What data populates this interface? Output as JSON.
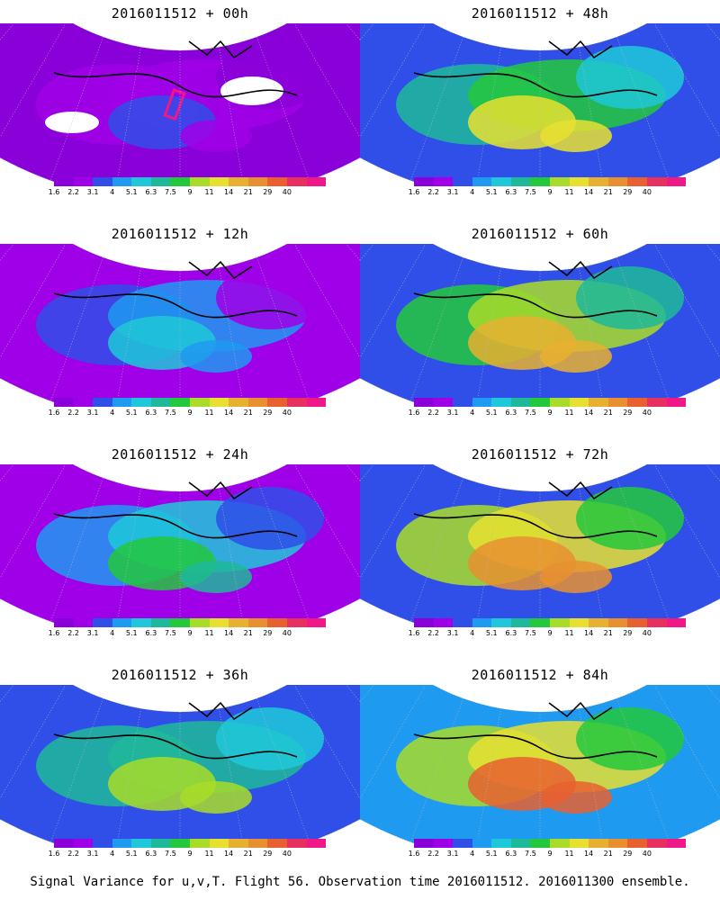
{
  "footer": "Signal Variance for u,v,T. Flight 56. Observation time 2016011512. 2016011300 ensemble.",
  "colorbar": {
    "colors": [
      "#8a00d8",
      "#a000e8",
      "#2f4fe8",
      "#1e9af0",
      "#1ec8d8",
      "#1eb89a",
      "#23c83c",
      "#a8dc28",
      "#e8e030",
      "#e8b030",
      "#e89030",
      "#e86030",
      "#e83060",
      "#f01888"
    ],
    "ticks": [
      "1.6",
      "2.2",
      "3.1",
      "4",
      "5.1",
      "6.3",
      "7.5",
      "9",
      "11",
      "14",
      "21",
      "29",
      "40"
    ]
  },
  "panels": [
    {
      "title": "2016011512 + 00h",
      "intensity": 0.0
    },
    {
      "title": "2016011512 + 48h",
      "intensity": 0.6
    },
    {
      "title": "2016011512 + 12h",
      "intensity": 0.2
    },
    {
      "title": "2016011512 + 60h",
      "intensity": 0.72
    },
    {
      "title": "2016011512 + 24h",
      "intensity": 0.35
    },
    {
      "title": "2016011512 + 72h",
      "intensity": 0.82
    },
    {
      "title": "2016011512 + 36h",
      "intensity": 0.5
    },
    {
      "title": "2016011512 + 84h",
      "intensity": 0.92
    }
  ]
}
